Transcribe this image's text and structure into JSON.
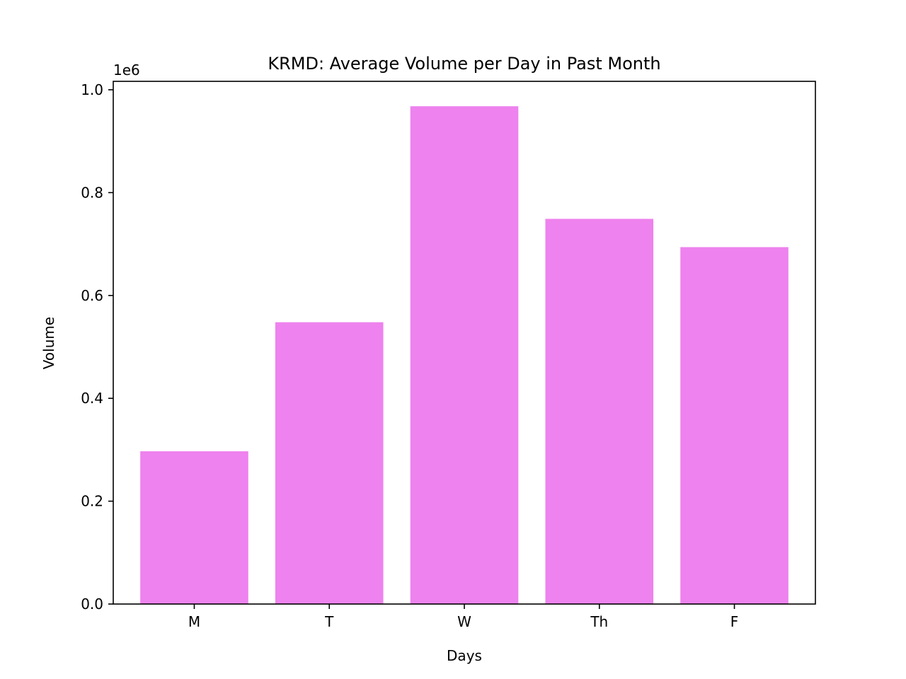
{
  "chart_data": {
    "type": "bar",
    "title": "KRMD: Average Volume per Day in Past Month",
    "xlabel": "Days",
    "ylabel": "Volume",
    "y_offset_label": "1e6",
    "categories": [
      "M",
      "T",
      "W",
      "Th",
      "F"
    ],
    "values": [
      297000,
      548000,
      968000,
      749000,
      694000
    ],
    "y_ticks": [
      0.0,
      0.2,
      0.4,
      0.6,
      0.8,
      1.0
    ],
    "y_tick_labels": [
      "0.0",
      "0.2",
      "0.4",
      "0.6",
      "0.8",
      "1.0"
    ],
    "y_tick_scale": 1000000,
    "ylim": [
      0,
      1016400
    ],
    "grid": false,
    "legend": "none",
    "colors": {
      "bar": "#ee82ee",
      "axis": "#000000",
      "background": "#ffffff"
    }
  }
}
